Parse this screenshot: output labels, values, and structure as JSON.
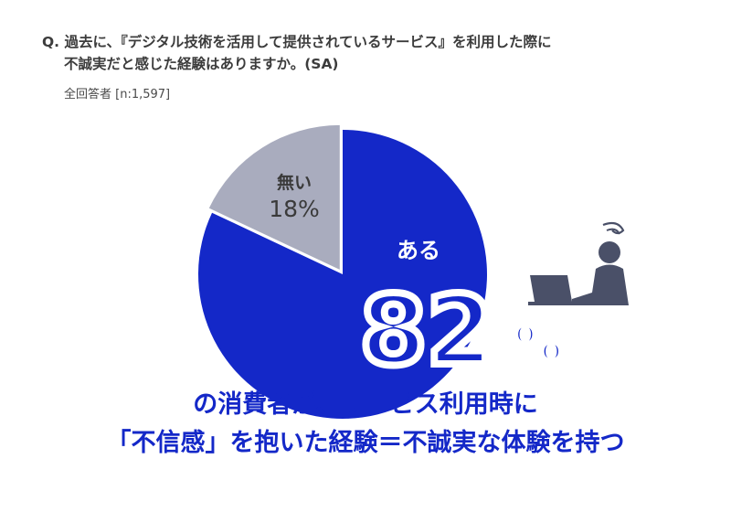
{
  "question": {
    "line1": "Q. 過去に、『デジタル技術を活用して提供されているサービス』を利用した際に",
    "line2": "不誠実だと感じた経験はありますか。(SA)"
  },
  "respondents": "全回答者 [n:1,597]",
  "colors": {
    "yes": "#1428c8",
    "no": "#a9acbe",
    "text": "#3a3a3a",
    "icon": "#4a5068"
  },
  "chart_data": {
    "type": "pie",
    "slices": [
      {
        "label": "ある",
        "value": 82,
        "display": "82",
        "unit": "%",
        "color": "#1428c8"
      },
      {
        "label": "無い",
        "value": 18,
        "display": "18%",
        "color": "#a9acbe"
      }
    ]
  },
  "headline": {
    "line1": "の消費者が、サービス利用時に",
    "line2": "「不信感」を抱いた経験＝不誠実な体験を持つ"
  },
  "icon": "person-at-laptop-confused-icon"
}
